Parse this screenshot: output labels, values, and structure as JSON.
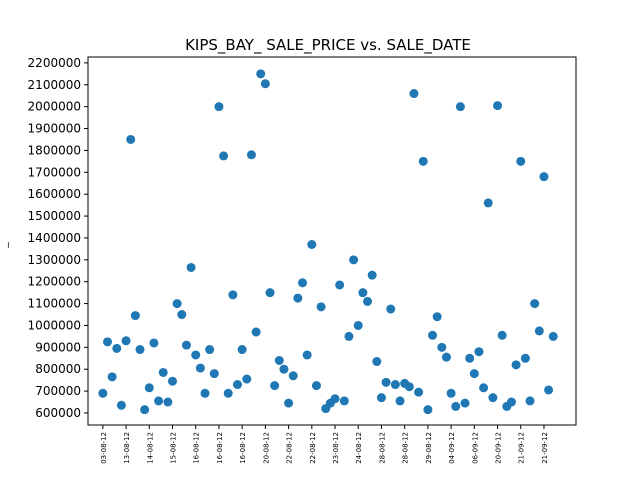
{
  "chart_data": {
    "type": "scatter",
    "title": "KIPS_BAY_ SALE_PRICE vs. SALE_DATE",
    "ylabel": "_",
    "x": [
      0,
      1,
      2,
      3,
      4,
      5,
      6,
      7,
      8,
      9,
      10,
      11,
      12,
      13,
      14,
      15,
      16,
      17,
      18,
      19,
      20,
      21,
      22,
      23,
      24,
      25,
      26,
      27,
      28,
      29,
      30,
      31,
      32,
      33,
      34,
      35,
      36,
      37,
      38,
      39,
      40,
      41,
      42,
      43,
      44,
      45,
      46,
      47,
      48,
      49,
      50,
      51,
      52,
      53,
      54,
      55,
      56,
      57,
      58,
      59,
      60,
      61,
      62,
      63,
      64,
      65,
      66,
      67,
      68,
      69,
      70,
      71,
      72,
      73,
      74,
      75,
      76,
      77,
      78,
      79,
      80,
      81,
      82,
      83,
      84,
      85,
      86,
      87,
      88,
      89,
      90,
      91,
      92,
      93,
      94,
      95,
      96,
      97
    ],
    "series": [
      {
        "color": "#1f77b4",
        "values": [
          690000,
          925000,
          765000,
          895000,
          635000,
          930000,
          1850000,
          1045000,
          890000,
          615000,
          715000,
          920000,
          655000,
          785000,
          650000,
          745000,
          1100000,
          1050000,
          910000,
          1265000,
          865000,
          805000,
          690000,
          890000,
          780000,
          2000000,
          1775000,
          690000,
          1140000,
          730000,
          890000,
          755000,
          1780000,
          970000,
          2150000,
          2105000,
          1150000,
          725000,
          840000,
          800000,
          645000,
          770000,
          1125000,
          1195000,
          865000,
          1370000,
          725000,
          1085000,
          620000,
          645000,
          665000,
          1185000,
          655000,
          950000,
          1300000,
          1000000,
          1150000,
          1110000,
          1230000,
          835000,
          670000,
          740000,
          1075000,
          730000,
          655000,
          735000,
          720000,
          2060000,
          695000,
          1750000,
          615000,
          955000,
          1040000,
          900000,
          855000,
          690000,
          630000,
          2000000,
          645000,
          850000,
          780000,
          880000,
          715000,
          1560000,
          670000,
          2005000,
          955000,
          630000,
          650000,
          820000,
          1750000,
          850000,
          655000,
          1100000,
          975000,
          1680000,
          705000,
          950000
        ]
      }
    ],
    "xlim": [
      -3.2,
      101.9
    ],
    "xticks": [
      {
        "value": 0,
        "label": "03-08-12"
      },
      {
        "value": 5,
        "label": "13-08-12"
      },
      {
        "value": 10,
        "label": "14-08-12"
      },
      {
        "value": 15,
        "label": "15-08-12"
      },
      {
        "value": 20,
        "label": "16-08-12"
      },
      {
        "value": 25,
        "label": "16-08-12"
      },
      {
        "value": 30,
        "label": "16-08-12"
      },
      {
        "value": 35,
        "label": "20-08-12"
      },
      {
        "value": 40,
        "label": "22-08-12"
      },
      {
        "value": 45,
        "label": "22-08-12"
      },
      {
        "value": 50,
        "label": "23-08-12"
      },
      {
        "value": 55,
        "label": "24-08-12"
      },
      {
        "value": 60,
        "label": "28-08-12"
      },
      {
        "value": 65,
        "label": "28-08-12"
      },
      {
        "value": 70,
        "label": "29-08-12"
      },
      {
        "value": 75,
        "label": "04-09-12"
      },
      {
        "value": 80,
        "label": "06-09-12"
      },
      {
        "value": 85,
        "label": "20-09-12"
      },
      {
        "value": 90,
        "label": "21-09-12"
      },
      {
        "value": 95,
        "label": "21-09-12"
      }
    ],
    "ylim": [
      545000,
      2227000
    ],
    "yticks": [
      600000,
      700000,
      800000,
      900000,
      1000000,
      1100000,
      1200000,
      1300000,
      1400000,
      1500000,
      1600000,
      1700000,
      1800000,
      1900000,
      2000000,
      2100000,
      2200000
    ]
  }
}
